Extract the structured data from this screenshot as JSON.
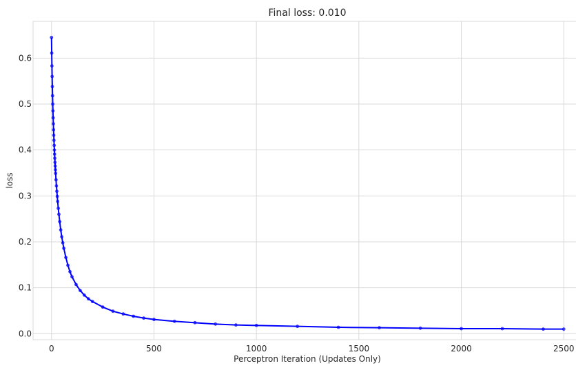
{
  "chart_data": {
    "type": "line",
    "title": "Final loss: 0.010",
    "xlabel": "Perceptron Iteration (Updates Only)",
    "ylabel": "loss",
    "xlim": [
      -90,
      2590
    ],
    "ylim": [
      -0.013,
      0.68
    ],
    "xticks": [
      0,
      500,
      1000,
      1500,
      2000,
      2500
    ],
    "yticks": [
      0.0,
      0.1,
      0.2,
      0.3,
      0.4,
      0.5,
      0.6
    ],
    "xtick_labels": [
      "0",
      "500",
      "1000",
      "1500",
      "2000",
      "2500"
    ],
    "ytick_labels": [
      "0.0",
      "0.1",
      "0.2",
      "0.3",
      "0.4",
      "0.5",
      "0.6"
    ],
    "grid": true,
    "series": [
      {
        "color": "#0000ff",
        "marker": "o",
        "x": [
          0,
          1,
          2,
          3,
          4,
          5,
          6,
          7,
          8,
          9,
          10,
          11,
          12,
          13,
          14,
          15,
          16,
          17,
          18,
          19,
          20,
          22,
          24,
          26,
          28,
          30,
          33,
          36,
          40,
          45,
          50,
          55,
          60,
          70,
          80,
          90,
          100,
          120,
          140,
          160,
          180,
          200,
          250,
          300,
          350,
          400,
          450,
          500,
          600,
          700,
          800,
          900,
          1000,
          1200,
          1400,
          1600,
          1800,
          2000,
          2200,
          2400,
          2500
        ],
        "y": [
          0.645,
          0.611,
          0.583,
          0.56,
          0.538,
          0.518,
          0.5,
          0.485,
          0.47,
          0.457,
          0.444,
          0.432,
          0.421,
          0.41,
          0.4,
          0.391,
          0.382,
          0.373,
          0.365,
          0.357,
          0.349,
          0.335,
          0.322,
          0.31,
          0.299,
          0.288,
          0.273,
          0.26,
          0.244,
          0.226,
          0.211,
          0.198,
          0.186,
          0.166,
          0.149,
          0.135,
          0.124,
          0.107,
          0.094,
          0.084,
          0.076,
          0.07,
          0.058,
          0.049,
          0.043,
          0.038,
          0.034,
          0.031,
          0.027,
          0.024,
          0.021,
          0.019,
          0.018,
          0.016,
          0.014,
          0.013,
          0.012,
          0.011,
          0.011,
          0.01,
          0.01
        ]
      }
    ]
  }
}
